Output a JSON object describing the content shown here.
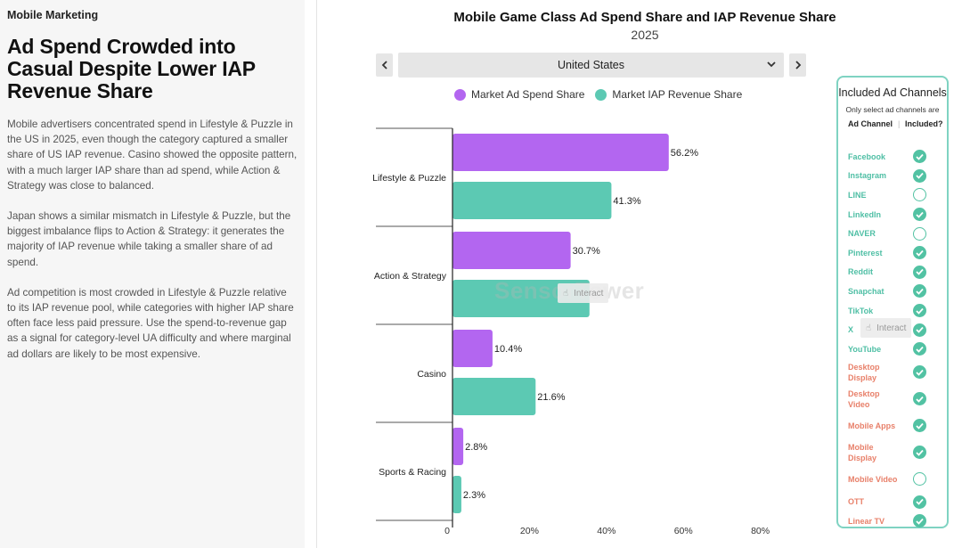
{
  "article": {
    "eyebrow": "Mobile Marketing",
    "headline": "Ad Spend Crowded into Casual Despite Lower IAP Revenue Share",
    "paragraphs": [
      "Mobile advertisers concentrated spend in Lifestyle & Puzzle in the US in 2025, even though the category captured a smaller share of US IAP revenue. Casino showed the opposite pattern, with a much larger IAP share than ad spend, while Action & Strategy was close to balanced.",
      "Japan shows a similar mismatch in Lifestyle & Puzzle, but the biggest imbalance flips to Action & Strategy: it generates the majority of IAP revenue while taking a smaller share of ad spend.",
      "Ad competition is most crowded in Lifestyle & Puzzle relative to its IAP revenue pool, while categories with higher IAP share often face less paid pressure. Use the spend-to-revenue gap as a signal for category-level UA difficulty and where marginal ad dollars are likely to be most expensive."
    ]
  },
  "controls": {
    "country": "United States",
    "prev_icon": "chevron-left-icon",
    "next_icon": "chevron-right-icon",
    "dropdown_icon": "chevron-down-icon"
  },
  "watermark": {
    "text": "SensorTower",
    "interact_label": "Interact"
  },
  "colors": {
    "ad_spend": "#b366f0",
    "iap_revenue": "#5cc9b3",
    "panel_border": "#7fd3c2",
    "check": "#52c2a3",
    "channel_teal": "#4fbfa5",
    "channel_orange": "#e8806a"
  },
  "chart_data": {
    "type": "bar",
    "orientation": "horizontal",
    "title": "Mobile Game Class Ad Spend Share and IAP Revenue Share",
    "subtitle": "2025",
    "categories": [
      "Lifestyle & Puzzle",
      "Action & Strategy",
      "Casino",
      "Sports & Racing"
    ],
    "series": [
      {
        "name": "Market Ad Spend Share",
        "values": [
          56.2,
          30.7,
          10.4,
          2.8
        ],
        "labels": [
          "56.2%",
          "30.7%",
          "10.4%",
          "2.8%"
        ]
      },
      {
        "name": "Market IAP Revenue Share",
        "values": [
          41.3,
          35.6,
          21.6,
          2.3
        ],
        "labels": [
          "41.3%",
          "",
          "21.6%",
          "2.3%"
        ]
      }
    ],
    "xlim": [
      0,
      80
    ],
    "xticks": [
      "0",
      "20%",
      "40%",
      "60%",
      "80%"
    ],
    "xtick_values": [
      0,
      20,
      40,
      60,
      80
    ],
    "legend": "top"
  },
  "channels": {
    "title": "Included Ad Channels",
    "note": "Only select ad channels are",
    "col_channel": "Ad Channel",
    "col_included": "Included?",
    "items": [
      {
        "name": "Facebook",
        "included": true,
        "color": "#4fbfa5"
      },
      {
        "name": "Instagram",
        "included": true,
        "color": "#4fbfa5"
      },
      {
        "name": "LINE",
        "included": false,
        "color": "#4fbfa5"
      },
      {
        "name": "LinkedIn",
        "included": true,
        "color": "#4fbfa5"
      },
      {
        "name": "NAVER",
        "included": false,
        "color": "#4fbfa5"
      },
      {
        "name": "Pinterest",
        "included": true,
        "color": "#4fbfa5"
      },
      {
        "name": "Reddit",
        "included": true,
        "color": "#4fbfa5"
      },
      {
        "name": "Snapchat",
        "included": true,
        "color": "#4fbfa5"
      },
      {
        "name": "TikTok",
        "included": true,
        "color": "#4fbfa5"
      },
      {
        "name": "X",
        "included": true,
        "color": "#4fbfa5"
      },
      {
        "name": "YouTube",
        "included": true,
        "color": "#4fbfa5"
      },
      {
        "name": "Desktop Display",
        "included": true,
        "color": "#e8806a"
      },
      {
        "name": "Desktop Video",
        "included": true,
        "color": "#e8806a"
      },
      {
        "name": "Mobile Apps",
        "included": true,
        "color": "#e8806a"
      },
      {
        "name": "Mobile Display",
        "included": true,
        "color": "#e8806a"
      },
      {
        "name": "Mobile Video",
        "included": false,
        "color": "#e8806a"
      },
      {
        "name": "OTT",
        "included": true,
        "color": "#e8806a"
      },
      {
        "name": "Linear TV",
        "included": true,
        "color": "#e8806a"
      }
    ]
  }
}
